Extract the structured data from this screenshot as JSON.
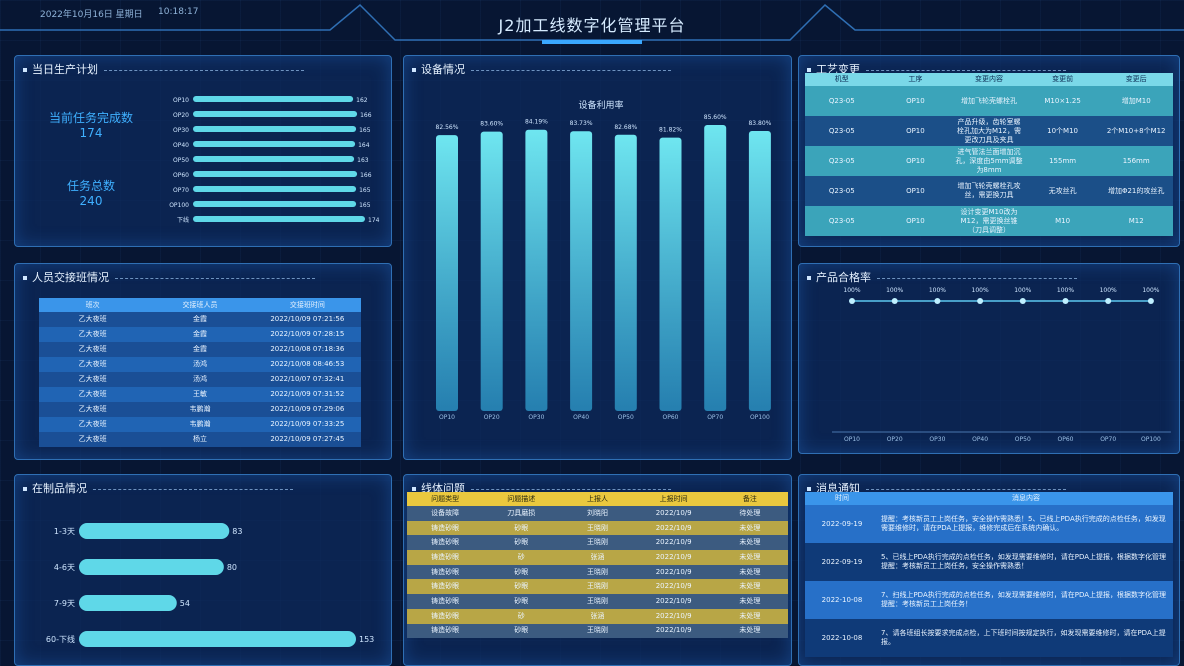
{
  "header": {
    "date": "2022年10月16日  星期日",
    "time": "10:18:17",
    "title": "J2加工线数字化管理平台"
  },
  "panels": [
    "当日生产计划",
    "人员交接班情况",
    "设备情况",
    "工艺变更",
    "产品合格率",
    "在制品情况",
    "线体问题",
    "消息通知"
  ],
  "stats": [
    {
      "label": "当前任务完成数",
      "value": 174
    },
    {
      "label": "任务总数",
      "value": 240
    }
  ],
  "chart_data": [
    {
      "type": "hbar",
      "categories": [
        "OP10",
        "OP20",
        "OP30",
        "OP40",
        "OP50",
        "OP60",
        "OP70",
        "OP100",
        "下线"
      ],
      "values": [
        162,
        166,
        165,
        164,
        163,
        166,
        165,
        165,
        174
      ],
      "color": "#5fd8e8"
    },
    {
      "type": "bar",
      "title": "设备利用率",
      "categories": [
        "OP10",
        "OP20",
        "OP30",
        "OP40",
        "OP50",
        "OP60",
        "OP70",
        "OP100"
      ],
      "values": [
        82.56,
        83.6,
        84.19,
        83.73,
        82.68,
        81.82,
        85.6,
        83.8
      ],
      "value_labels": [
        "82.56%",
        "83.60%",
        "84.19%",
        "83.73%",
        "82.68%",
        "81.82%",
        "85.60%",
        "83.80%"
      ],
      "color": "#6fe6f0"
    },
    {
      "type": "line",
      "categories": [
        "OP10",
        "OP20",
        "OP30",
        "OP40",
        "OP50",
        "OP60",
        "OP70",
        "OP100"
      ],
      "values": [
        100,
        100,
        100,
        100,
        100,
        100,
        100,
        100
      ],
      "value_labels": [
        "100%",
        "100%",
        "100%",
        "100%",
        "100%",
        "100%",
        "100%",
        "100%"
      ],
      "color": "#5cc8f0"
    },
    {
      "type": "hbar",
      "categories": [
        "1-3天",
        "4-6天",
        "7-9天",
        "60-下线"
      ],
      "values": [
        83,
        80,
        54,
        153
      ],
      "color": "#5fd8e8"
    }
  ],
  "shift_table": {
    "columns": [
      "班次",
      "交接班人员",
      "交接班时间"
    ],
    "rows": [
      [
        "乙大夜班",
        "金霞",
        "2022/10/09 07:21:56"
      ],
      [
        "乙大夜班",
        "金霞",
        "2022/10/09 07:28:15"
      ],
      [
        "乙大夜班",
        "金霞",
        "2022/10/08 07:18:36"
      ],
      [
        "乙大夜班",
        "汤鸿",
        "2022/10/08 08:46:53"
      ],
      [
        "乙大夜班",
        "汤鸿",
        "2022/10/07 07:32:41"
      ],
      [
        "乙大夜班",
        "王敏",
        "2022/10/09 07:31:52"
      ],
      [
        "乙大夜班",
        "韦鹏瀚",
        "2022/10/09 07:29:06"
      ],
      [
        "乙大夜班",
        "韦鹏瀚",
        "2022/10/09 07:33:25"
      ],
      [
        "乙大夜班",
        "杨立",
        "2022/10/09 07:27:45"
      ]
    ]
  },
  "process_change": {
    "columns": [
      "机型",
      "工序",
      "变更内容",
      "变更前",
      "变更后"
    ],
    "rows": [
      [
        "Q23-05",
        "OP10",
        "增加飞轮壳螺栓孔",
        "M10×1.25",
        "增加M10"
      ],
      [
        "Q23-05",
        "OP10",
        "产品升级，齿轮室螺栓孔加大为M12，需更改刀具及夹具",
        "10个M10",
        "2个M10+8个M12"
      ],
      [
        "Q23-05",
        "OP10",
        "进气管法兰面增加沉孔，深度由5mm调整为8mm",
        "155mm",
        "156mm"
      ],
      [
        "Q23-05",
        "OP10",
        "增加飞轮壳螺栓孔攻丝，需更换刀具",
        "无攻丝孔",
        "增加Φ21的攻丝孔"
      ],
      [
        "Q23-05",
        "OP10",
        "设计变更M10改为M12，需更换丝锥（刀具调整）",
        "M10",
        "M12"
      ]
    ]
  },
  "line_issues": {
    "columns": [
      "问题类型",
      "问题描述",
      "上报人",
      "上报时间",
      "备注"
    ],
    "rows": [
      [
        "设备故障",
        "刀具磨损",
        "刘晓阳",
        "2022/10/9",
        "待处理"
      ],
      [
        "铸造砂眼",
        "砂眼",
        "王晓刚",
        "2022/10/9",
        "未处理"
      ],
      [
        "铸造砂眼",
        "砂眼",
        "王晓刚",
        "2022/10/9",
        "未处理"
      ],
      [
        "铸造砂眼",
        "砂",
        "张涵",
        "2022/10/9",
        "未处理"
      ],
      [
        "铸造砂眼",
        "砂眼",
        "王晓刚",
        "2022/10/9",
        "未处理"
      ],
      [
        "铸造砂眼",
        "砂眼",
        "王晓刚",
        "2022/10/9",
        "未处理"
      ],
      [
        "铸造砂眼",
        "砂眼",
        "王晓刚",
        "2022/10/9",
        "未处理"
      ],
      [
        "铸造砂眼",
        "砂",
        "张涵",
        "2022/10/9",
        "未处理"
      ],
      [
        "铸造砂眼",
        "砂眼",
        "王晓刚",
        "2022/10/9",
        "未处理"
      ]
    ]
  },
  "messages": {
    "columns": [
      "时间",
      "消息内容"
    ],
    "rows": [
      [
        "2022-09-19",
        "提醒：考核新员工上岗任务，安全操作需熟悉！5、已线上PDA执行完成的点检任务，如发现需要维修时，请在PDA上提报，维修完成后在系统内确认。"
      ],
      [
        "2022-09-19",
        "5、已线上PDA执行完成的点检任务，如发现需要维修时，请在PDA上提报，根据数字化管理提醒：考核新员工上岗任务，安全操作需熟悉！"
      ],
      [
        "2022-10-08",
        "7、扫线上PDA执行完成的点检任务，如发现需要维修时，请在PDA上提报，根据数字化管理提醒：考核新员工上岗任务！"
      ],
      [
        "2022-10-08",
        "7、请各班组长按要求完成点检，上下班时间按规定执行，如发现需要维修时，请在PDA上提报。"
      ]
    ]
  }
}
